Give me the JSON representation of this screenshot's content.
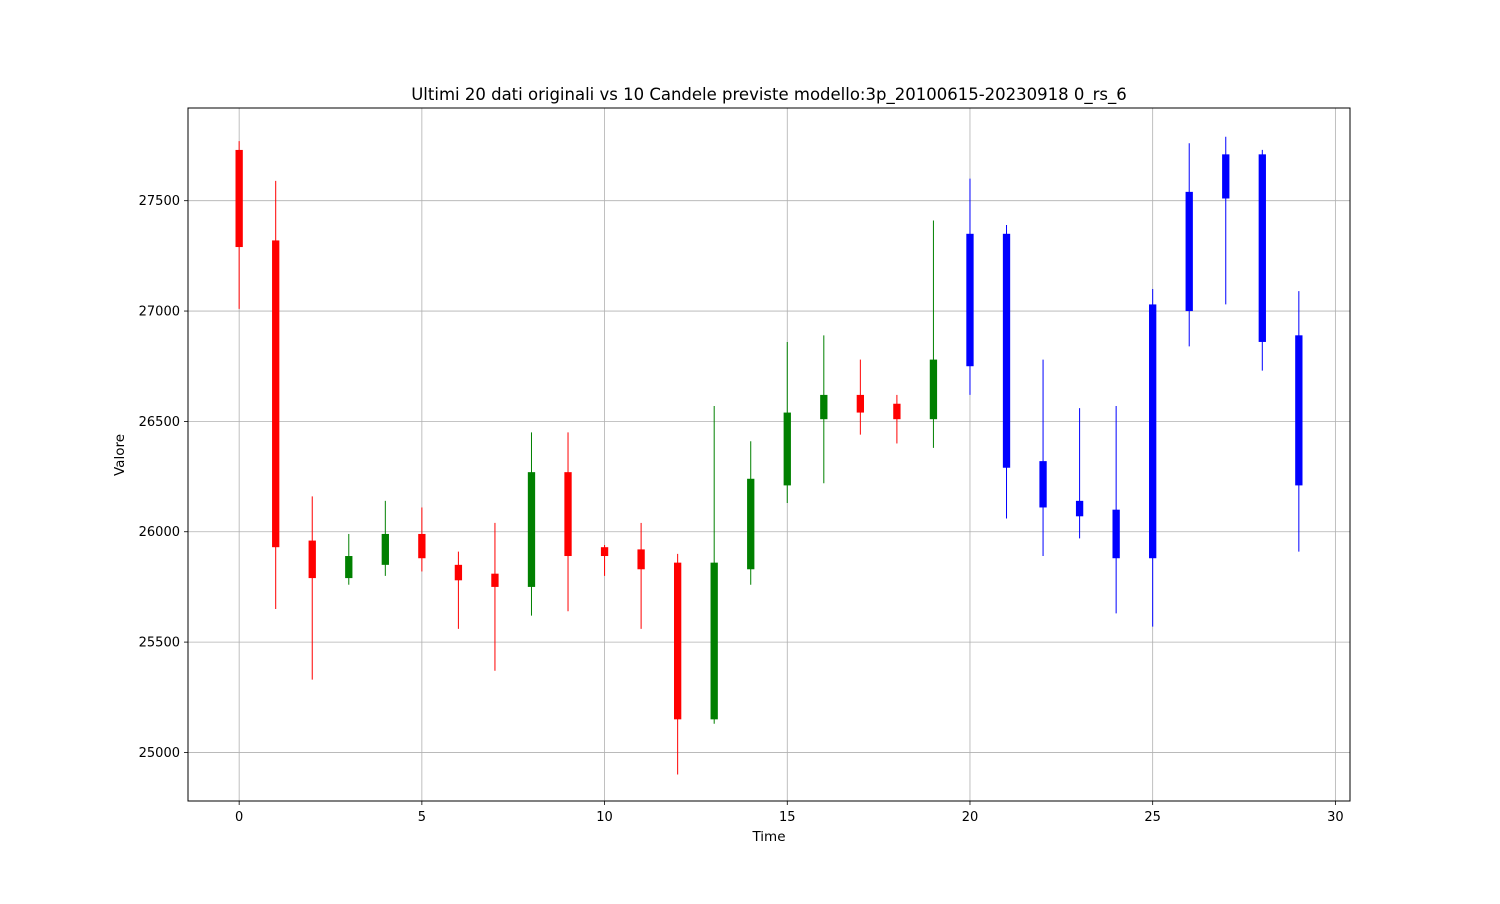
{
  "chart_data": {
    "type": "candlestick",
    "title": "Ultimi 20 dati originali vs 10 Candele previste modello:3p_20100615-20230918 0_rs_6",
    "xlabel": "Time",
    "ylabel": "Valore",
    "xlim": [
      -1.4,
      30.4
    ],
    "ylim": [
      24780,
      27920
    ],
    "xticks": [
      0,
      5,
      10,
      15,
      20,
      25,
      30
    ],
    "yticks": [
      25000,
      25500,
      26000,
      26500,
      27000,
      27500
    ],
    "grid": true,
    "colors": {
      "up": "#008000",
      "down": "#ff0000",
      "forecast": "#0000ff"
    },
    "series": [
      {
        "name": "",
        "kind": "original",
        "candles": [
          {
            "t": 0,
            "open": 27730,
            "high": 27770,
            "low": 27010,
            "close": 27290
          },
          {
            "t": 1,
            "open": 27320,
            "high": 27590,
            "low": 25650,
            "close": 25930
          },
          {
            "t": 2,
            "open": 25960,
            "high": 26160,
            "low": 25330,
            "close": 25790
          },
          {
            "t": 3,
            "open": 25790,
            "high": 25990,
            "low": 25760,
            "close": 25890
          },
          {
            "t": 4,
            "open": 25850,
            "high": 26140,
            "low": 25800,
            "close": 25990
          },
          {
            "t": 5,
            "open": 25990,
            "high": 26110,
            "low": 25820,
            "close": 25880
          },
          {
            "t": 6,
            "open": 25850,
            "high": 25910,
            "low": 25560,
            "close": 25780
          },
          {
            "t": 7,
            "open": 25810,
            "high": 26040,
            "low": 25370,
            "close": 25750
          },
          {
            "t": 8,
            "open": 25750,
            "high": 26450,
            "low": 25620,
            "close": 26270
          },
          {
            "t": 9,
            "open": 26270,
            "high": 26450,
            "low": 25640,
            "close": 25890
          },
          {
            "t": 10,
            "open": 25930,
            "high": 25940,
            "low": 25800,
            "close": 25890
          },
          {
            "t": 11,
            "open": 25920,
            "high": 26040,
            "low": 25560,
            "close": 25830
          },
          {
            "t": 12,
            "open": 25860,
            "high": 25900,
            "low": 24900,
            "close": 25150
          },
          {
            "t": 13,
            "open": 25150,
            "high": 26570,
            "low": 25130,
            "close": 25860
          },
          {
            "t": 14,
            "open": 25830,
            "high": 26410,
            "low": 25760,
            "close": 26240
          },
          {
            "t": 15,
            "open": 26210,
            "high": 26860,
            "low": 26130,
            "close": 26540
          },
          {
            "t": 16,
            "open": 26510,
            "high": 26890,
            "low": 26220,
            "close": 26620
          },
          {
            "t": 17,
            "open": 26620,
            "high": 26780,
            "low": 26440,
            "close": 26540
          },
          {
            "t": 18,
            "open": 26580,
            "high": 26620,
            "low": 26400,
            "close": 26510
          },
          {
            "t": 19,
            "open": 26510,
            "high": 27410,
            "low": 26380,
            "close": 26780
          }
        ]
      },
      {
        "name": "",
        "kind": "forecast",
        "candles": [
          {
            "t": 20,
            "open": 26750,
            "high": 27600,
            "low": 26620,
            "close": 27350
          },
          {
            "t": 21,
            "open": 27350,
            "high": 27390,
            "low": 26060,
            "close": 26290
          },
          {
            "t": 22,
            "open": 26320,
            "high": 26780,
            "low": 25890,
            "close": 26110
          },
          {
            "t": 23,
            "open": 26140,
            "high": 26560,
            "low": 25970,
            "close": 26070
          },
          {
            "t": 24,
            "open": 26100,
            "high": 26570,
            "low": 25630,
            "close": 25880
          },
          {
            "t": 25,
            "open": 25880,
            "high": 27100,
            "low": 25570,
            "close": 27030
          },
          {
            "t": 26,
            "open": 27000,
            "high": 27760,
            "low": 26840,
            "close": 27540
          },
          {
            "t": 27,
            "open": 27510,
            "high": 27790,
            "low": 27030,
            "close": 27710
          },
          {
            "t": 28,
            "open": 27710,
            "high": 27730,
            "low": 26730,
            "close": 26860
          },
          {
            "t": 29,
            "open": 26890,
            "high": 27090,
            "low": 25910,
            "close": 26210
          }
        ]
      }
    ]
  }
}
